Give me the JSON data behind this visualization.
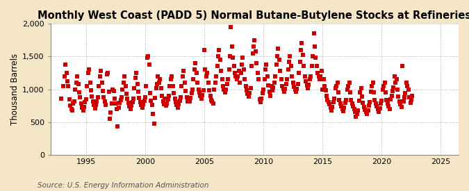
{
  "title": "Monthly West Coast (PADD 5) Normal Butane-Butylene Stocks at Refineries",
  "ylabel": "Thousand Barrels",
  "source": "Source: U.S. Energy Information Administration",
  "background_color": "#f5e6c8",
  "plot_bg_color": "#ffffff",
  "marker_color": "#cc0000",
  "marker": "s",
  "marker_size": 14,
  "ylim": [
    0,
    2000
  ],
  "yticks": [
    0,
    500,
    1000,
    1500,
    2000
  ],
  "xlim_start": 1992.0,
  "xlim_end": 2026.5,
  "xticks": [
    1995,
    2000,
    2005,
    2010,
    2015,
    2020,
    2025
  ],
  "title_fontsize": 10.5,
  "label_fontsize": 8.5,
  "tick_fontsize": 8,
  "source_fontsize": 7.5,
  "data_points": [
    [
      1992.917,
      860
    ],
    [
      1993.083,
      1050
    ],
    [
      1993.167,
      1200
    ],
    [
      1993.25,
      1380
    ],
    [
      1993.333,
      1250
    ],
    [
      1993.417,
      1120
    ],
    [
      1993.5,
      1050
    ],
    [
      1993.583,
      850
    ],
    [
      1993.667,
      750
    ],
    [
      1993.75,
      700
    ],
    [
      1993.833,
      680
    ],
    [
      1993.917,
      780
    ],
    [
      1994.0,
      820
    ],
    [
      1994.083,
      1000
    ],
    [
      1994.167,
      1100
    ],
    [
      1994.25,
      1200
    ],
    [
      1994.333,
      1080
    ],
    [
      1994.417,
      950
    ],
    [
      1994.5,
      880
    ],
    [
      1994.583,
      780
    ],
    [
      1994.667,
      720
    ],
    [
      1994.75,
      680
    ],
    [
      1994.833,
      730
    ],
    [
      1994.917,
      800
    ],
    [
      1995.0,
      850
    ],
    [
      1995.083,
      1050
    ],
    [
      1995.167,
      1250
    ],
    [
      1995.25,
      1300
    ],
    [
      1995.333,
      1100
    ],
    [
      1995.417,
      980
    ],
    [
      1995.5,
      890
    ],
    [
      1995.583,
      820
    ],
    [
      1995.667,
      760
    ],
    [
      1995.75,
      710
    ],
    [
      1995.833,
      760
    ],
    [
      1995.917,
      820
    ],
    [
      1996.0,
      880
    ],
    [
      1996.083,
      1050
    ],
    [
      1996.167,
      1200
    ],
    [
      1996.25,
      1280
    ],
    [
      1996.333,
      1100
    ],
    [
      1996.417,
      970
    ],
    [
      1996.5,
      880
    ],
    [
      1996.583,
      820
    ],
    [
      1996.667,
      760
    ],
    [
      1996.75,
      1230
    ],
    [
      1996.833,
      1250
    ],
    [
      1996.917,
      960
    ],
    [
      1997.0,
      550
    ],
    [
      1997.083,
      650
    ],
    [
      1997.167,
      780
    ],
    [
      1997.25,
      1000
    ],
    [
      1997.333,
      970
    ],
    [
      1997.417,
      860
    ],
    [
      1997.5,
      780
    ],
    [
      1997.583,
      700
    ],
    [
      1997.667,
      430
    ],
    [
      1997.75,
      720
    ],
    [
      1997.833,
      790
    ],
    [
      1997.917,
      840
    ],
    [
      1998.0,
      880
    ],
    [
      1998.083,
      1000
    ],
    [
      1998.167,
      1100
    ],
    [
      1998.25,
      1200
    ],
    [
      1998.333,
      1050
    ],
    [
      1998.417,
      930
    ],
    [
      1998.5,
      860
    ],
    [
      1998.583,
      790
    ],
    [
      1998.667,
      740
    ],
    [
      1998.75,
      700
    ],
    [
      1998.833,
      750
    ],
    [
      1998.917,
      810
    ],
    [
      1999.0,
      860
    ],
    [
      1999.083,
      1020
    ],
    [
      1999.167,
      1180
    ],
    [
      1999.25,
      1250
    ],
    [
      1999.333,
      1080
    ],
    [
      1999.417,
      960
    ],
    [
      1999.5,
      870
    ],
    [
      1999.583,
      810
    ],
    [
      1999.667,
      760
    ],
    [
      1999.75,
      720
    ],
    [
      1999.833,
      770
    ],
    [
      1999.917,
      830
    ],
    [
      2000.0,
      880
    ],
    [
      2000.083,
      1050
    ],
    [
      2000.167,
      1480
    ],
    [
      2000.25,
      1500
    ],
    [
      2000.333,
      1380
    ],
    [
      2000.417,
      940
    ],
    [
      2000.5,
      830
    ],
    [
      2000.583,
      760
    ],
    [
      2000.667,
      630
    ],
    [
      2000.75,
      480
    ],
    [
      2000.833,
      870
    ],
    [
      2000.917,
      1020
    ],
    [
      2001.0,
      1080
    ],
    [
      2001.083,
      1200
    ],
    [
      2001.167,
      1100
    ],
    [
      2001.25,
      1150
    ],
    [
      2001.333,
      1020
    ],
    [
      2001.417,
      900
    ],
    [
      2001.5,
      820
    ],
    [
      2001.583,
      770
    ],
    [
      2001.667,
      860
    ],
    [
      2001.75,
      750
    ],
    [
      2001.833,
      780
    ],
    [
      2001.917,
      850
    ],
    [
      2002.0,
      900
    ],
    [
      2002.083,
      1050
    ],
    [
      2002.167,
      1150
    ],
    [
      2002.25,
      1200
    ],
    [
      2002.333,
      1050
    ],
    [
      2002.417,
      940
    ],
    [
      2002.5,
      860
    ],
    [
      2002.583,
      800
    ],
    [
      2002.667,
      760
    ],
    [
      2002.75,
      720
    ],
    [
      2002.833,
      770
    ],
    [
      2002.917,
      830
    ],
    [
      2003.0,
      880
    ],
    [
      2003.083,
      1050
    ],
    [
      2003.167,
      1200
    ],
    [
      2003.25,
      1280
    ],
    [
      2003.333,
      1100
    ],
    [
      2003.417,
      970
    ],
    [
      2003.5,
      880
    ],
    [
      2003.583,
      820
    ],
    [
      2003.667,
      860
    ],
    [
      2003.75,
      820
    ],
    [
      2003.833,
      870
    ],
    [
      2003.917,
      940
    ],
    [
      2004.0,
      1000
    ],
    [
      2004.083,
      1150
    ],
    [
      2004.167,
      1300
    ],
    [
      2004.25,
      1400
    ],
    [
      2004.333,
      1250
    ],
    [
      2004.417,
      1100
    ],
    [
      2004.5,
      1000
    ],
    [
      2004.583,
      950
    ],
    [
      2004.667,
      900
    ],
    [
      2004.75,
      860
    ],
    [
      2004.833,
      910
    ],
    [
      2004.917,
      980
    ],
    [
      2005.0,
      1600
    ],
    [
      2005.083,
      1300
    ],
    [
      2005.167,
      1200
    ],
    [
      2005.25,
      1250
    ],
    [
      2005.333,
      1100
    ],
    [
      2005.417,
      980
    ],
    [
      2005.5,
      900
    ],
    [
      2005.583,
      840
    ],
    [
      2005.667,
      820
    ],
    [
      2005.75,
      780
    ],
    [
      2005.833,
      1000
    ],
    [
      2005.917,
      1100
    ],
    [
      2006.0,
      1200
    ],
    [
      2006.083,
      1350
    ],
    [
      2006.167,
      1500
    ],
    [
      2006.25,
      1600
    ],
    [
      2006.333,
      1450
    ],
    [
      2006.417,
      1280
    ],
    [
      2006.5,
      1150
    ],
    [
      2006.583,
      1050
    ],
    [
      2006.667,
      1000
    ],
    [
      2006.75,
      950
    ],
    [
      2006.833,
      1000
    ],
    [
      2006.917,
      1080
    ],
    [
      2007.0,
      1150
    ],
    [
      2007.083,
      1300
    ],
    [
      2007.167,
      1500
    ],
    [
      2007.25,
      1950
    ],
    [
      2007.333,
      1650
    ],
    [
      2007.417,
      1480
    ],
    [
      2007.5,
      1350
    ],
    [
      2007.583,
      1250
    ],
    [
      2007.667,
      1200
    ],
    [
      2007.75,
      1150
    ],
    [
      2007.833,
      1200
    ],
    [
      2007.917,
      1280
    ],
    [
      2008.0,
      1100
    ],
    [
      2008.083,
      1250
    ],
    [
      2008.167,
      1380
    ],
    [
      2008.25,
      1480
    ],
    [
      2008.333,
      1300
    ],
    [
      2008.417,
      1150
    ],
    [
      2008.5,
      1050
    ],
    [
      2008.583,
      980
    ],
    [
      2008.667,
      930
    ],
    [
      2008.75,
      890
    ],
    [
      2008.833,
      940
    ],
    [
      2008.917,
      1020
    ],
    [
      2009.0,
      1350
    ],
    [
      2009.083,
      1550
    ],
    [
      2009.167,
      1650
    ],
    [
      2009.25,
      1750
    ],
    [
      2009.333,
      1580
    ],
    [
      2009.417,
      1400
    ],
    [
      2009.5,
      1250
    ],
    [
      2009.583,
      1150
    ],
    [
      2009.667,
      850
    ],
    [
      2009.75,
      800
    ],
    [
      2009.833,
      860
    ],
    [
      2009.917,
      940
    ],
    [
      2010.0,
      1000
    ],
    [
      2010.083,
      1150
    ],
    [
      2010.167,
      1300
    ],
    [
      2010.25,
      1380
    ],
    [
      2010.333,
      1200
    ],
    [
      2010.417,
      1060
    ],
    [
      2010.5,
      960
    ],
    [
      2010.583,
      900
    ],
    [
      2010.667,
      1050
    ],
    [
      2010.75,
      980
    ],
    [
      2010.833,
      1030
    ],
    [
      2010.917,
      1100
    ],
    [
      2011.0,
      1200
    ],
    [
      2011.083,
      1380
    ],
    [
      2011.167,
      1500
    ],
    [
      2011.25,
      1620
    ],
    [
      2011.333,
      1450
    ],
    [
      2011.417,
      1280
    ],
    [
      2011.5,
      1150
    ],
    [
      2011.583,
      1050
    ],
    [
      2011.667,
      1010
    ],
    [
      2011.75,
      960
    ],
    [
      2011.833,
      1010
    ],
    [
      2011.917,
      1080
    ],
    [
      2012.0,
      1150
    ],
    [
      2012.083,
      1300
    ],
    [
      2012.167,
      1420
    ],
    [
      2012.25,
      1500
    ],
    [
      2012.333,
      1350
    ],
    [
      2012.417,
      1200
    ],
    [
      2012.5,
      1100
    ],
    [
      2012.583,
      1040
    ],
    [
      2012.667,
      1000
    ],
    [
      2012.75,
      960
    ],
    [
      2012.833,
      1010
    ],
    [
      2012.917,
      1080
    ],
    [
      2013.0,
      1250
    ],
    [
      2013.083,
      1420
    ],
    [
      2013.167,
      1600
    ],
    [
      2013.25,
      1700
    ],
    [
      2013.333,
      1520
    ],
    [
      2013.417,
      1350
    ],
    [
      2013.5,
      1200
    ],
    [
      2013.583,
      1120
    ],
    [
      2013.667,
      1060
    ],
    [
      2013.75,
      1020
    ],
    [
      2013.833,
      1070
    ],
    [
      2013.917,
      1150
    ],
    [
      2014.0,
      1200
    ],
    [
      2014.083,
      1350
    ],
    [
      2014.167,
      1500
    ],
    [
      2014.25,
      1850
    ],
    [
      2014.333,
      1650
    ],
    [
      2014.417,
      1480
    ],
    [
      2014.5,
      1350
    ],
    [
      2014.583,
      1250
    ],
    [
      2014.667,
      1200
    ],
    [
      2014.75,
      1150
    ],
    [
      2014.833,
      1200
    ],
    [
      2014.917,
      1280
    ],
    [
      2015.0,
      1000
    ],
    [
      2015.083,
      1150
    ],
    [
      2015.167,
      1050
    ],
    [
      2015.25,
      980
    ],
    [
      2015.333,
      900
    ],
    [
      2015.417,
      840
    ],
    [
      2015.5,
      800
    ],
    [
      2015.583,
      770
    ],
    [
      2015.667,
      720
    ],
    [
      2015.75,
      680
    ],
    [
      2015.833,
      730
    ],
    [
      2015.917,
      800
    ],
    [
      2016.0,
      860
    ],
    [
      2016.083,
      1020
    ],
    [
      2016.167,
      1050
    ],
    [
      2016.25,
      1100
    ],
    [
      2016.333,
      950
    ],
    [
      2016.417,
      840
    ],
    [
      2016.5,
      780
    ],
    [
      2016.583,
      740
    ],
    [
      2016.667,
      700
    ],
    [
      2016.75,
      670
    ],
    [
      2016.833,
      720
    ],
    [
      2016.917,
      790
    ],
    [
      2017.0,
      840
    ],
    [
      2017.083,
      1000
    ],
    [
      2017.167,
      1050
    ],
    [
      2017.25,
      1100
    ],
    [
      2017.333,
      950
    ],
    [
      2017.417,
      840
    ],
    [
      2017.5,
      780
    ],
    [
      2017.583,
      740
    ],
    [
      2017.667,
      700
    ],
    [
      2017.75,
      660
    ],
    [
      2017.833,
      580
    ],
    [
      2017.917,
      620
    ],
    [
      2018.0,
      680
    ],
    [
      2018.083,
      830
    ],
    [
      2018.167,
      950
    ],
    [
      2018.25,
      1020
    ],
    [
      2018.333,
      890
    ],
    [
      2018.417,
      790
    ],
    [
      2018.5,
      730
    ],
    [
      2018.583,
      690
    ],
    [
      2018.667,
      660
    ],
    [
      2018.75,
      630
    ],
    [
      2018.833,
      680
    ],
    [
      2018.917,
      750
    ],
    [
      2019.0,
      800
    ],
    [
      2019.083,
      960
    ],
    [
      2019.167,
      1050
    ],
    [
      2019.25,
      1100
    ],
    [
      2019.333,
      950
    ],
    [
      2019.417,
      840
    ],
    [
      2019.5,
      780
    ],
    [
      2019.583,
      740
    ],
    [
      2019.667,
      700
    ],
    [
      2019.75,
      660
    ],
    [
      2019.833,
      710
    ],
    [
      2019.917,
      780
    ],
    [
      2020.0,
      830
    ],
    [
      2020.083,
      990
    ],
    [
      2020.167,
      1050
    ],
    [
      2020.25,
      1100
    ],
    [
      2020.333,
      950
    ],
    [
      2020.417,
      840
    ],
    [
      2020.5,
      780
    ],
    [
      2020.583,
      740
    ],
    [
      2020.667,
      700
    ],
    [
      2020.75,
      850
    ],
    [
      2020.833,
      900
    ],
    [
      2020.917,
      970
    ],
    [
      2021.0,
      1030
    ],
    [
      2021.083,
      1200
    ],
    [
      2021.167,
      1100
    ],
    [
      2021.25,
      1150
    ],
    [
      2021.333,
      1000
    ],
    [
      2021.417,
      890
    ],
    [
      2021.5,
      820
    ],
    [
      2021.583,
      770
    ],
    [
      2021.667,
      730
    ],
    [
      2021.75,
      1350
    ],
    [
      2021.833,
      820
    ],
    [
      2021.917,
      880
    ],
    [
      2022.0,
      940
    ],
    [
      2022.083,
      1100
    ],
    [
      2022.167,
      1050
    ],
    [
      2022.25,
      1000
    ],
    [
      2022.333,
      880
    ],
    [
      2022.417,
      790
    ],
    [
      2022.5,
      840
    ],
    [
      2022.583,
      900
    ]
  ]
}
